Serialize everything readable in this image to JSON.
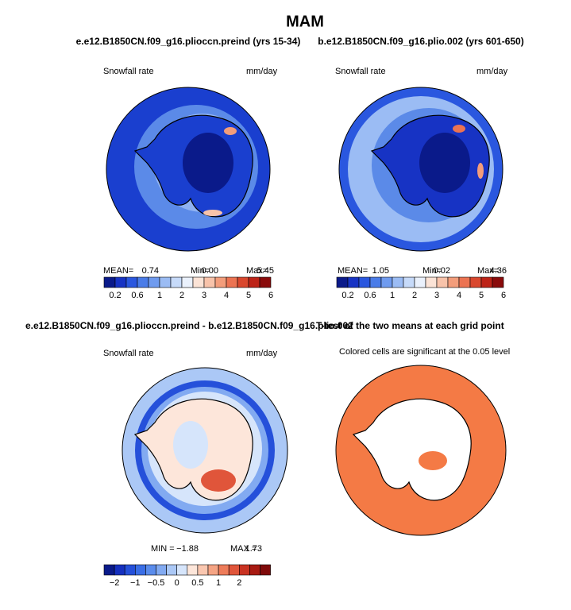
{
  "title": "MAM",
  "panels": [
    {
      "title": "e.e12.B1850CN.f09_g16.plioccn.preind (yrs 15-34)",
      "left_label": "Snowfall rate",
      "right_label": "mm/day",
      "stats": [
        "MEAN=",
        "0.74",
        "Min=",
        "0.00",
        "Max=",
        "5.45"
      ],
      "colorbar": {
        "colors": [
          "#0a1a8a",
          "#1733c4",
          "#2a57df",
          "#4a7ce8",
          "#6f9bef",
          "#9bbcf4",
          "#c6daf9",
          "#eaf1fc",
          "#fbe3d6",
          "#f8c3aa",
          "#f39d7b",
          "#ec7352",
          "#d9472d",
          "#bd2317",
          "#8a0b0b"
        ],
        "labels": [
          "0.2",
          "0.6",
          "1",
          "2",
          "3",
          "4",
          "5",
          "6"
        ]
      }
    },
    {
      "title": "b.e12.B1850CN.f09_g16.plio.002 (yrs 601-650)",
      "left_label": "Snowfall rate",
      "right_label": "mm/day",
      "stats": [
        "MEAN=",
        "1.05",
        "Min=",
        "0.02",
        "Max=",
        "4.36"
      ],
      "colorbar": {
        "colors": [
          "#0a1a8a",
          "#1733c4",
          "#2a57df",
          "#4a7ce8",
          "#6f9bef",
          "#9bbcf4",
          "#c6daf9",
          "#eaf1fc",
          "#fbe3d6",
          "#f8c3aa",
          "#f39d7b",
          "#ec7352",
          "#d9472d",
          "#bd2317",
          "#8a0b0b"
        ],
        "labels": [
          "0.2",
          "0.6",
          "1",
          "2",
          "3",
          "4",
          "5",
          "6"
        ]
      }
    },
    {
      "title": "e.e12.B1850CN.f09_g16.plioccn.preind - b.e12.B1850CN.f09_g16.plio.002",
      "left_label": "Snowfall rate",
      "right_label": "mm/day",
      "stats": [
        "MIN =",
        "−1.88",
        "MAX =",
        "1.73"
      ],
      "colorbar": {
        "colors": [
          "#0a1a8a",
          "#1530bf",
          "#2550da",
          "#3a6ee6",
          "#5a8cec",
          "#82aaf1",
          "#abc8f6",
          "#d6e5fb",
          "#fde6da",
          "#fac7b0",
          "#f5a484",
          "#ee7c5a",
          "#e0553a",
          "#c93322",
          "#a81a12",
          "#7f0a0a"
        ],
        "labels": [
          "−2",
          "−1",
          "−0.5",
          "0",
          "0.5",
          "1",
          "2"
        ]
      }
    },
    {
      "title": "T-test of the two means at each grid point",
      "left_label": "Colored cells are significant at the 0.05 level"
    }
  ]
}
